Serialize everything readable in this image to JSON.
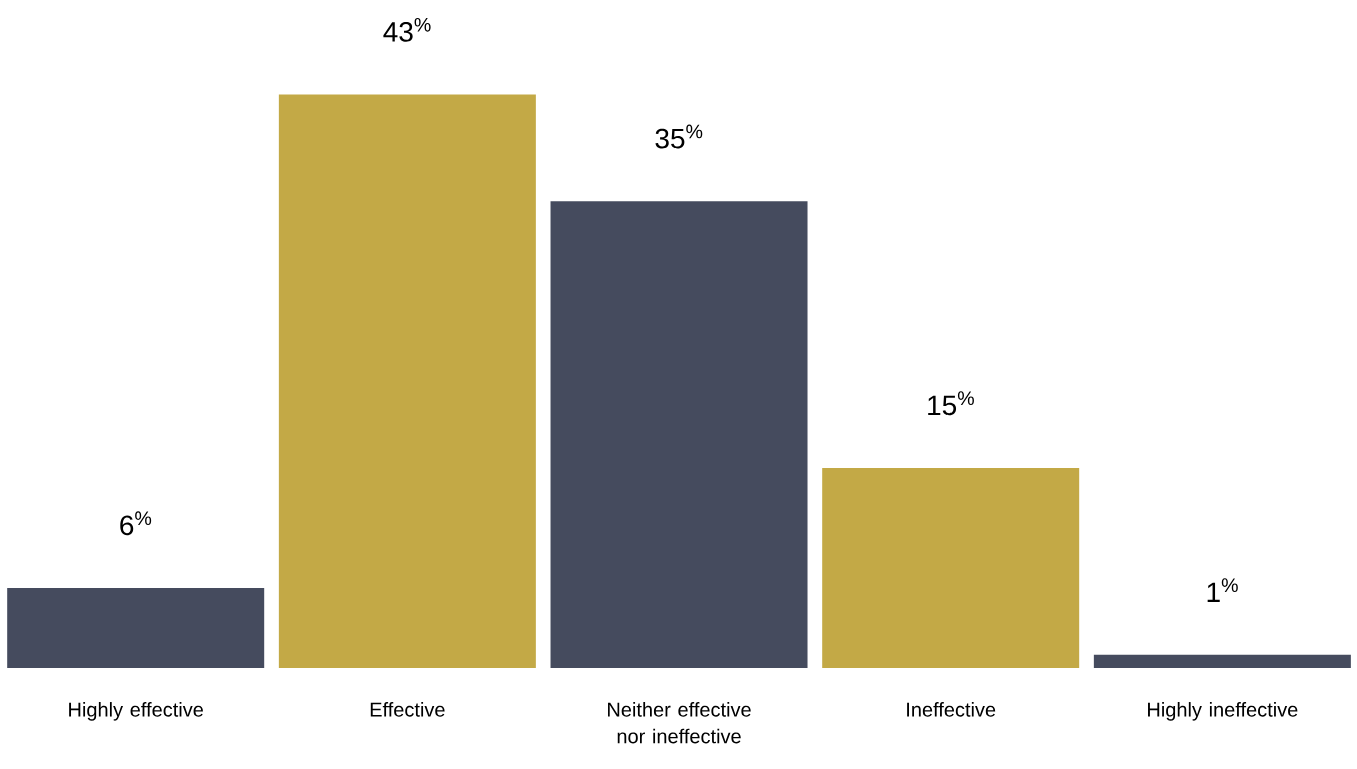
{
  "chart_data": {
    "type": "bar",
    "categories": [
      "Highly effective",
      "Effective",
      "Neither effective nor ineffective",
      "Ineffective",
      "Highly ineffective"
    ],
    "values": [
      6,
      43,
      35,
      15,
      1
    ],
    "colors": [
      "#454b5e",
      "#c3a946",
      "#454b5e",
      "#c3a946",
      "#454b5e"
    ],
    "value_labels": [
      "6$^{%}$",
      "43$^{%}$",
      "35$^{%}$",
      "15$^{%}$",
      "1$^{%}$"
    ]
  }
}
